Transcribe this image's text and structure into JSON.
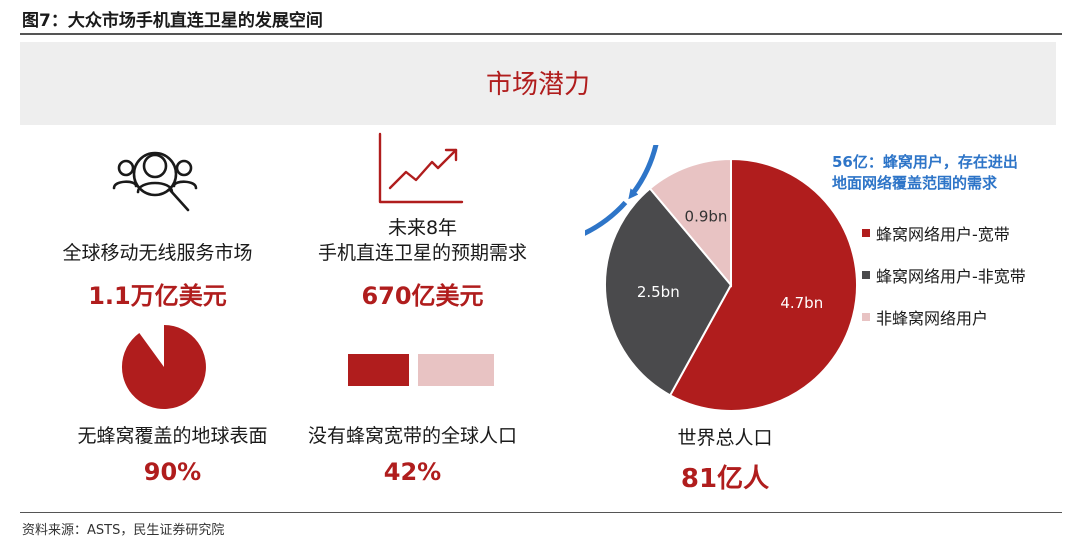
{
  "figure_title": "图7：大众市场手机直连卫星的发展空间",
  "banner": "市场潜力",
  "metrics": [
    {
      "label": "全球移动无线服务市场",
      "value": "1.1万亿美元"
    },
    {
      "label_line1": "未来8年",
      "label_line2": "手机直连卫星的预期需求",
      "value": "670亿美元"
    },
    {
      "label": "无蜂窝覆盖的地球表面",
      "value": "90%"
    },
    {
      "label": "没有蜂窝宽带的全球人口",
      "value": "42%"
    }
  ],
  "icons": {
    "market": "people-search-icon",
    "demand": "trend-chart-icon",
    "coverage": "pie-90-percent-icon",
    "population": "bar-split-icon"
  },
  "population": {
    "label": "世界总人口",
    "value": "81亿人"
  },
  "callout": {
    "line1": "56亿：蜂窝用户，存在进出",
    "line2": "地面网络覆盖范围的需求"
  },
  "source": "资料来源：ASTS，民生证券研究院",
  "colors": {
    "accent": "#b01d1d",
    "dark": "#4a4a4c",
    "light": "#e8c3c3",
    "callout": "#2e75c8"
  },
  "chart_data": {
    "type": "pie",
    "series": [
      {
        "name": "蜂窝网络用户-宽带",
        "value": 4.7,
        "label": "4.7bn",
        "color": "#b01d1d"
      },
      {
        "name": "蜂窝网络用户-非宽带",
        "value": 2.5,
        "label": "2.5bn",
        "color": "#4a4a4c"
      },
      {
        "name": "非蜂窝网络用户",
        "value": 0.9,
        "label": "0.9bn",
        "color": "#e8c3c3"
      }
    ]
  }
}
